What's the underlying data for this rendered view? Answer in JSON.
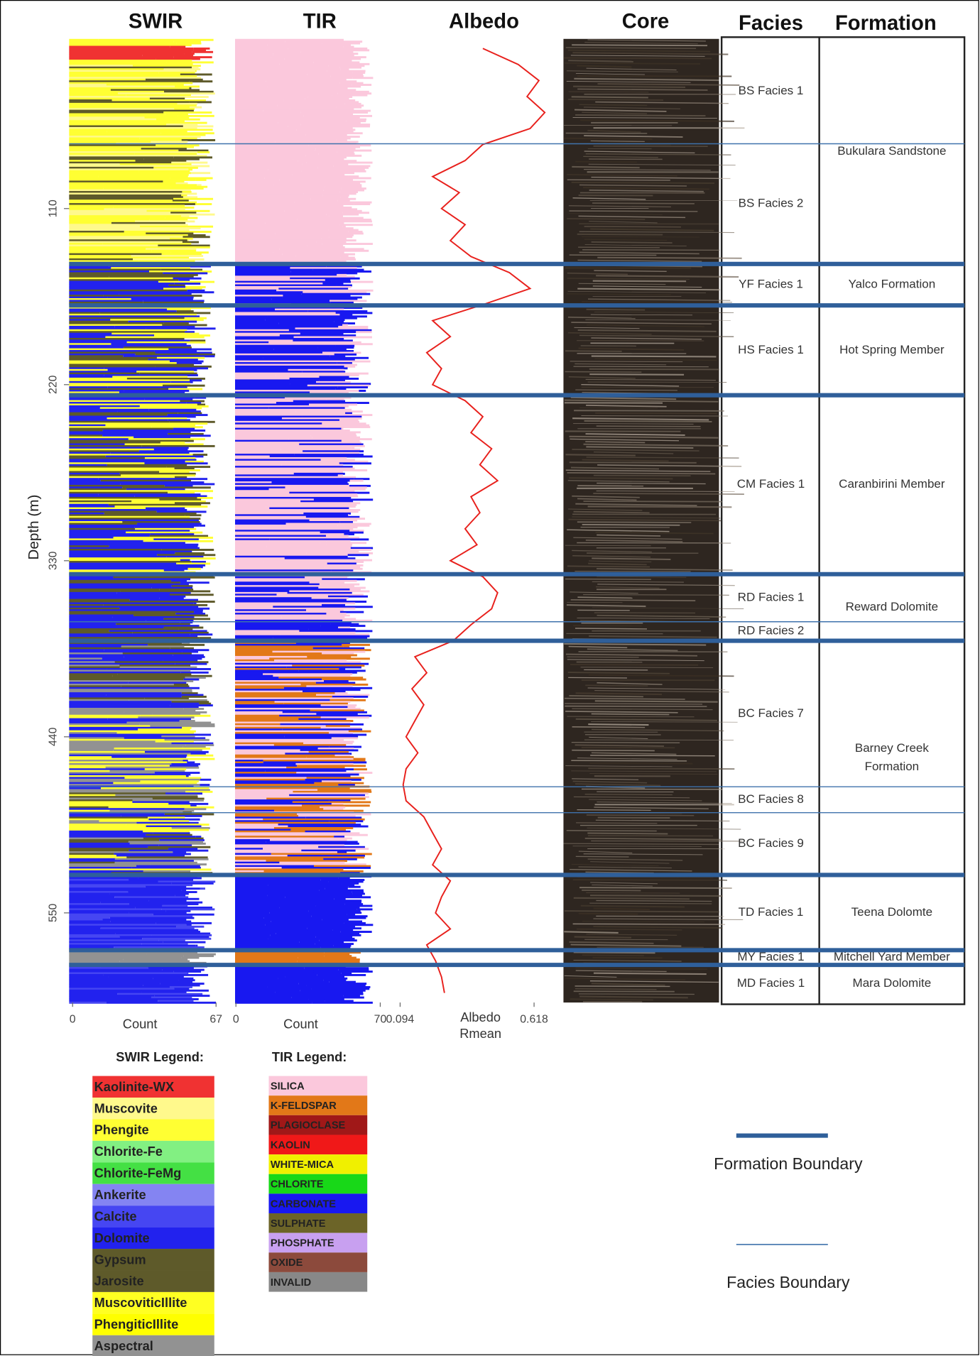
{
  "chart_data": {
    "type": "log",
    "columns": [
      "SWIR",
      "TIR",
      "Albedo",
      "Core",
      "Facies",
      "Formation"
    ],
    "ylabel": "Depth (m)",
    "ylim": [
      4,
      606
    ],
    "yticks": [
      110,
      220,
      330,
      440,
      550
    ],
    "swir": {
      "xlabel": "Count",
      "xlim": [
        0,
        67
      ],
      "xticks": [
        0,
        67
      ]
    },
    "tir": {
      "xlabel": "Count",
      "xlim": [
        0,
        70
      ],
      "xticks": [
        0,
        70
      ]
    },
    "albedo": {
      "xlabel": [
        "Albedo",
        "Rmean"
      ],
      "xlim": [
        0.094,
        0.618
      ],
      "xticks": [
        0.094,
        0.618
      ],
      "color": "#e8201c",
      "depth": [
        10,
        20,
        30,
        40,
        50,
        60,
        70,
        80,
        90,
        100,
        110,
        120,
        130,
        140,
        150,
        160,
        170,
        180,
        190,
        200,
        210,
        220,
        230,
        240,
        250,
        260,
        270,
        280,
        290,
        300,
        310,
        320,
        330,
        340,
        350,
        360,
        370,
        380,
        390,
        400,
        410,
        420,
        430,
        440,
        450,
        460,
        470,
        480,
        490,
        500,
        510,
        520,
        530,
        540,
        550,
        560,
        570,
        580,
        590,
        600
      ],
      "values": [
        0.38,
        0.5,
        0.57,
        0.53,
        0.59,
        0.54,
        0.38,
        0.32,
        0.21,
        0.3,
        0.24,
        0.32,
        0.27,
        0.34,
        0.47,
        0.54,
        0.38,
        0.21,
        0.27,
        0.19,
        0.24,
        0.21,
        0.32,
        0.38,
        0.34,
        0.41,
        0.37,
        0.43,
        0.34,
        0.37,
        0.32,
        0.36,
        0.27,
        0.38,
        0.43,
        0.41,
        0.34,
        0.28,
        0.15,
        0.19,
        0.14,
        0.18,
        0.15,
        0.12,
        0.16,
        0.12,
        0.11,
        0.12,
        0.18,
        0.21,
        0.24,
        0.21,
        0.27,
        0.24,
        0.22,
        0.27,
        0.19,
        0.22,
        0.24,
        0.25
      ]
    },
    "boundaries": {
      "formation": [
        144.6,
        170.5,
        226.6,
        338.4,
        380.0,
        526.3,
        573.3,
        582.5
      ],
      "facies": [
        69.5,
        368.1,
        471.2,
        487.4
      ]
    },
    "facies": [
      "BS Facies 1",
      "BS Facies 2",
      "YF Facies 1",
      "HS Facies 1",
      "CM Facies 1",
      "RD Facies 1",
      "RD Facies 2",
      "BC Facies 7",
      "BC Facies 8",
      "BC Facies 9",
      "TD Facies 1",
      "MY Facies 1",
      "MD Facies 1"
    ],
    "formations": [
      [
        "Bukulara Sandstone"
      ],
      [
        "Yalco Formation"
      ],
      [
        "Hot Spring Member"
      ],
      [
        "Caranbirini Member"
      ],
      [
        "Reward Dolomite"
      ],
      [
        "Barney Creek",
        "Formation"
      ],
      [
        "Teena Dolomte"
      ],
      [
        "Mitchell Yard Member"
      ],
      [
        "Mara Dolomite"
      ]
    ],
    "legends": [
      {
        "title": "SWIR Legend:",
        "items": [
          {
            "label": "Kaolinite-WX",
            "color": "#f03232",
            "text_color": "#ffffff"
          },
          {
            "label": "Muscovite",
            "color": "#fff98c",
            "text_color": "#000000"
          },
          {
            "label": "Phengite",
            "color": "#ffff33",
            "text_color": "#000000"
          },
          {
            "label": "Chlorite-Fe",
            "color": "#82f082",
            "text_color": "#000000"
          },
          {
            "label": "Chlorite-FeMg",
            "color": "#44e044",
            "text_color": "#000000"
          },
          {
            "label": "Ankerite",
            "color": "#8484f2",
            "text_color": "#000000"
          },
          {
            "label": "Calcite",
            "color": "#4646f2",
            "text_color": "#ffffff"
          },
          {
            "label": "Dolomite",
            "color": "#2222ee",
            "text_color": "#ffffff"
          },
          {
            "label": "Gypsum",
            "color": "#5e5a2a",
            "text_color": "#ffffff"
          },
          {
            "label": "Jarosite",
            "color": "#5e5a2a",
            "text_color": "#ffffff"
          },
          {
            "label": "MuscoviticIllite",
            "color": "#ffff22",
            "text_color": "#000000"
          },
          {
            "label": "PhengiticIllite",
            "color": "#ffff00",
            "text_color": "#000000"
          },
          {
            "label": "Aspectral",
            "color": "#929292",
            "text_color": "#000000"
          }
        ]
      },
      {
        "title": "TIR Legend:",
        "items": [
          {
            "label": "SILICA",
            "color": "#fbc8dc",
            "text_color": "#5a3a4a"
          },
          {
            "label": "K-FELDSPAR",
            "color": "#e27818",
            "text_color": "#ffe0c0"
          },
          {
            "label": "PLAGIOCLASE",
            "color": "#a01818",
            "text_color": "#ffd0d0"
          },
          {
            "label": "KAOLIN",
            "color": "#f01818",
            "text_color": "#ffe0e0"
          },
          {
            "label": "WHITE-MICA",
            "color": "#f0f000",
            "text_color": "#404000"
          },
          {
            "label": "CHLORITE",
            "color": "#18d818",
            "text_color": "#d8ffd8"
          },
          {
            "label": "CARBONATE",
            "color": "#1818f0",
            "text_color": "#d8d8ff"
          },
          {
            "label": "SULPHATE",
            "color": "#6c6428",
            "text_color": "#e8e4c0"
          },
          {
            "label": "PHOSPHATE",
            "color": "#c8a0f0",
            "text_color": "#ffffff"
          },
          {
            "label": "OXIDE",
            "color": "#8c4a3c",
            "text_color": "#f0d8d0"
          },
          {
            "label": "INVALID",
            "color": "#888888",
            "text_color": "#303030"
          }
        ]
      }
    ],
    "boundary_legend": [
      {
        "label": "Formation Boundary",
        "color": "#2f5f9a"
      },
      {
        "label": "Facies Boundary",
        "color": "#3f72ac"
      }
    ]
  }
}
